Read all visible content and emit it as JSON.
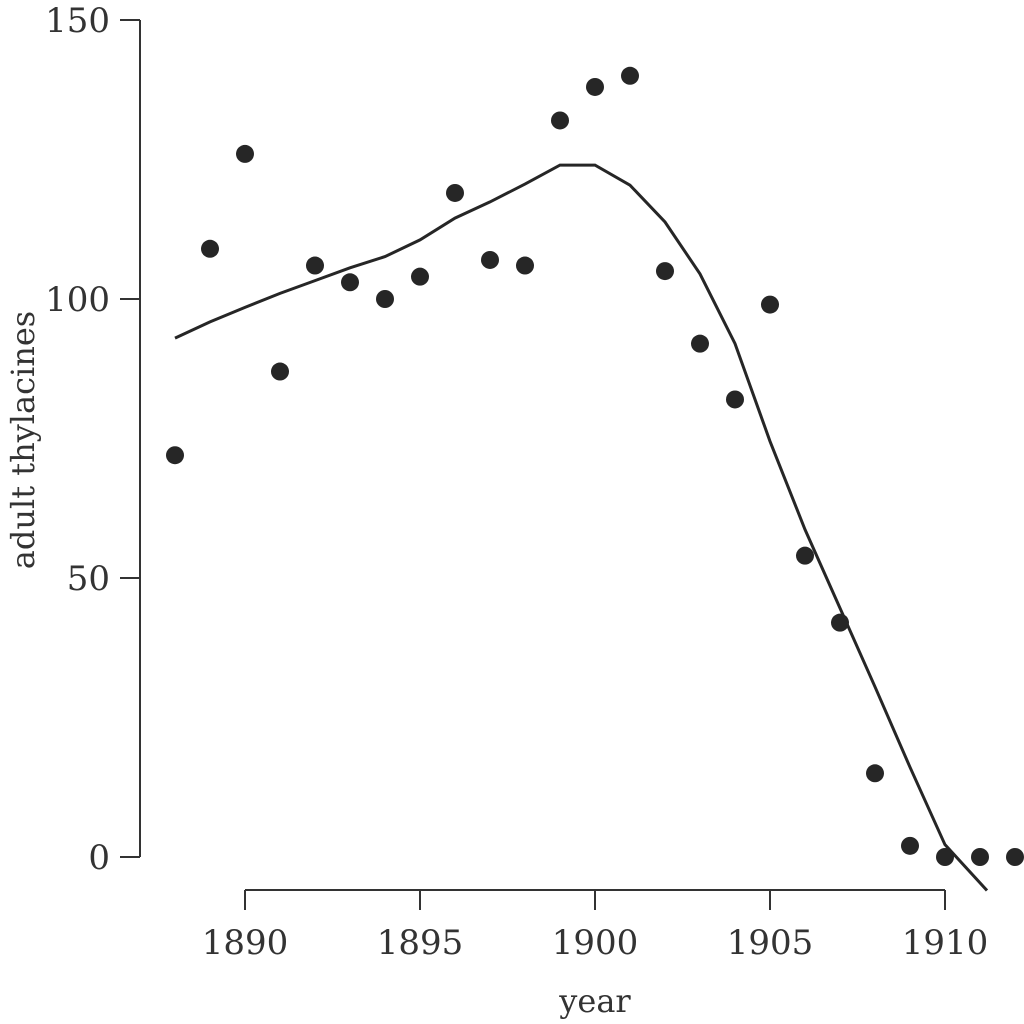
{
  "chart_data": {
    "type": "scatter",
    "title": "",
    "xlabel": "year",
    "ylabel": "adult thylacines",
    "xlim": [
      1886,
      1912
    ],
    "ylim": [
      0,
      150
    ],
    "x_ticks": [
      1890,
      1895,
      1900,
      1905,
      1910
    ],
    "y_ticks": [
      0,
      50,
      100,
      150
    ],
    "grid": false,
    "series": [
      {
        "type": "scatter",
        "color": "#262626",
        "x": [
          1888,
          1889,
          1890,
          1891,
          1892,
          1893,
          1894,
          1895,
          1896,
          1897,
          1898,
          1899,
          1900,
          1901,
          1902,
          1903,
          1904,
          1905,
          1906,
          1907,
          1908,
          1909,
          1910,
          1911,
          1912
        ],
        "y": [
          72,
          109,
          126,
          87,
          106,
          103,
          100,
          104,
          119,
          107,
          106,
          132,
          138,
          140,
          105,
          92,
          82,
          99,
          54,
          42,
          15,
          2,
          0,
          0,
          0
        ]
      },
      {
        "type": "line",
        "color": "#262626",
        "x": [
          1888,
          1889,
          1890,
          1891,
          1892,
          1893,
          1894,
          1895,
          1896,
          1897,
          1898,
          1899,
          1900,
          1901,
          1902,
          1903,
          1904,
          1905,
          1906,
          1907,
          1908,
          1909,
          1910,
          1911.2
        ],
        "y": [
          93,
          95.9,
          98.5,
          101,
          103.3,
          105.6,
          107.6,
          110.6,
          114.5,
          117.4,
          120.6,
          124,
          124,
          120.4,
          113.8,
          104.5,
          92,
          74.5,
          58.7,
          44.6,
          30.5,
          16.1,
          2.2,
          -6
        ]
      }
    ]
  }
}
